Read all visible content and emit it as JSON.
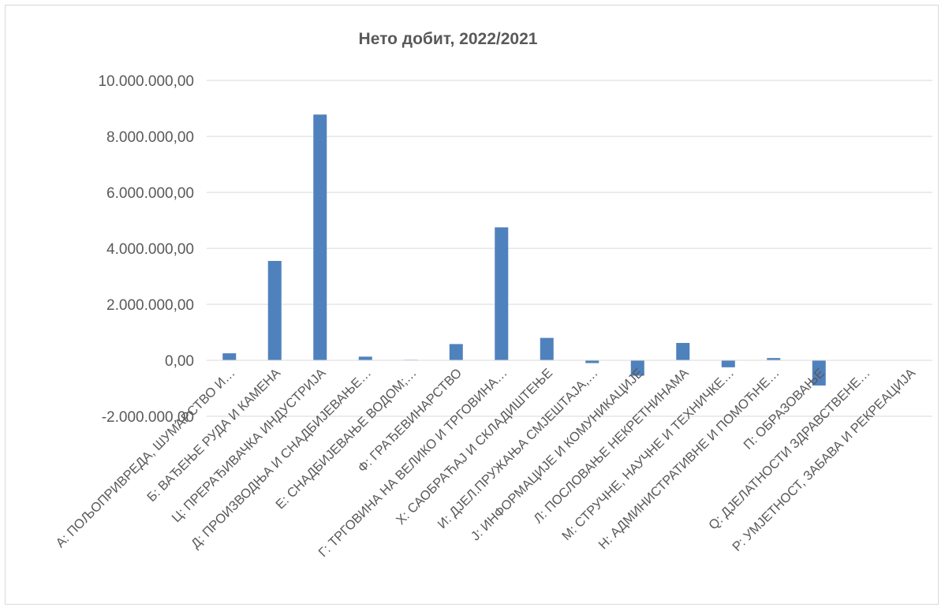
{
  "chart_data": {
    "type": "bar",
    "title": "Нето добит, 2022/2021",
    "xlabel": "",
    "ylabel": "",
    "ylim": [
      -2000000,
      10000000
    ],
    "ytick_values": [
      -2000000,
      0,
      2000000,
      4000000,
      6000000,
      8000000,
      10000000
    ],
    "ytick_labels": [
      "-2.000.000,00",
      "0,00",
      "2.000.000,00",
      "4.000.000,00",
      "6.000.000,00",
      "8.000.000,00",
      "10.000.000,00"
    ],
    "grid": true,
    "legend": "none",
    "bar_color": "#4f81bd",
    "categories": [
      "А: ПОЉОПРИВРЕДА, ШУМАРСТВО И…",
      "Б: ВАЂЕЊЕ РУДА И КАМЕНА",
      "Ц: ПРЕРАЂИВАЧКА ИНДУСТРИЈА",
      "Д: ПРОИЗВОДЊА И СНАДБИЈЕВАЊЕ…",
      "Е: СНАДБИЈЕВАЊЕ ВОДОМ;…",
      "Ф: ГРАЂЕВИНАРСТВО",
      "Г: ТРГОВИНА НА ВЕЛИКО И ТРГОВИНА…",
      "Х: САОБРАЋАЈ И СКЛАДИШТЕЊЕ",
      "И: ДЈЕЛ.ПРУЖАЊА СМЈЕШТАЈА,…",
      "Ј: ИНФОРМАЦИЈЕ И КОМУНИКАЦИЈЕ",
      "Л: ПОСЛОВАЊЕ НЕКРЕТНИНАМА",
      "М: СТРУЧНЕ, НАУЧНЕ И ТЕХНИЧКЕ…",
      "Н: АДМИНИСТРАТИВНЕ И ПОМОЋНЕ…",
      "П: ОБРАЗОВАЊЕ",
      "Q: ДЈЕЛАТНОСТИ ЗДРАВСТВЕНЕ…",
      "Р: УМЈЕТНОСТ, ЗАБАВА И РЕКРЕАЦИЈА"
    ],
    "values": [
      250000,
      3550000,
      8780000,
      130000,
      20000,
      580000,
      4750000,
      800000,
      -100000,
      -550000,
      620000,
      -250000,
      80000,
      -900000,
      0,
      0
    ]
  }
}
